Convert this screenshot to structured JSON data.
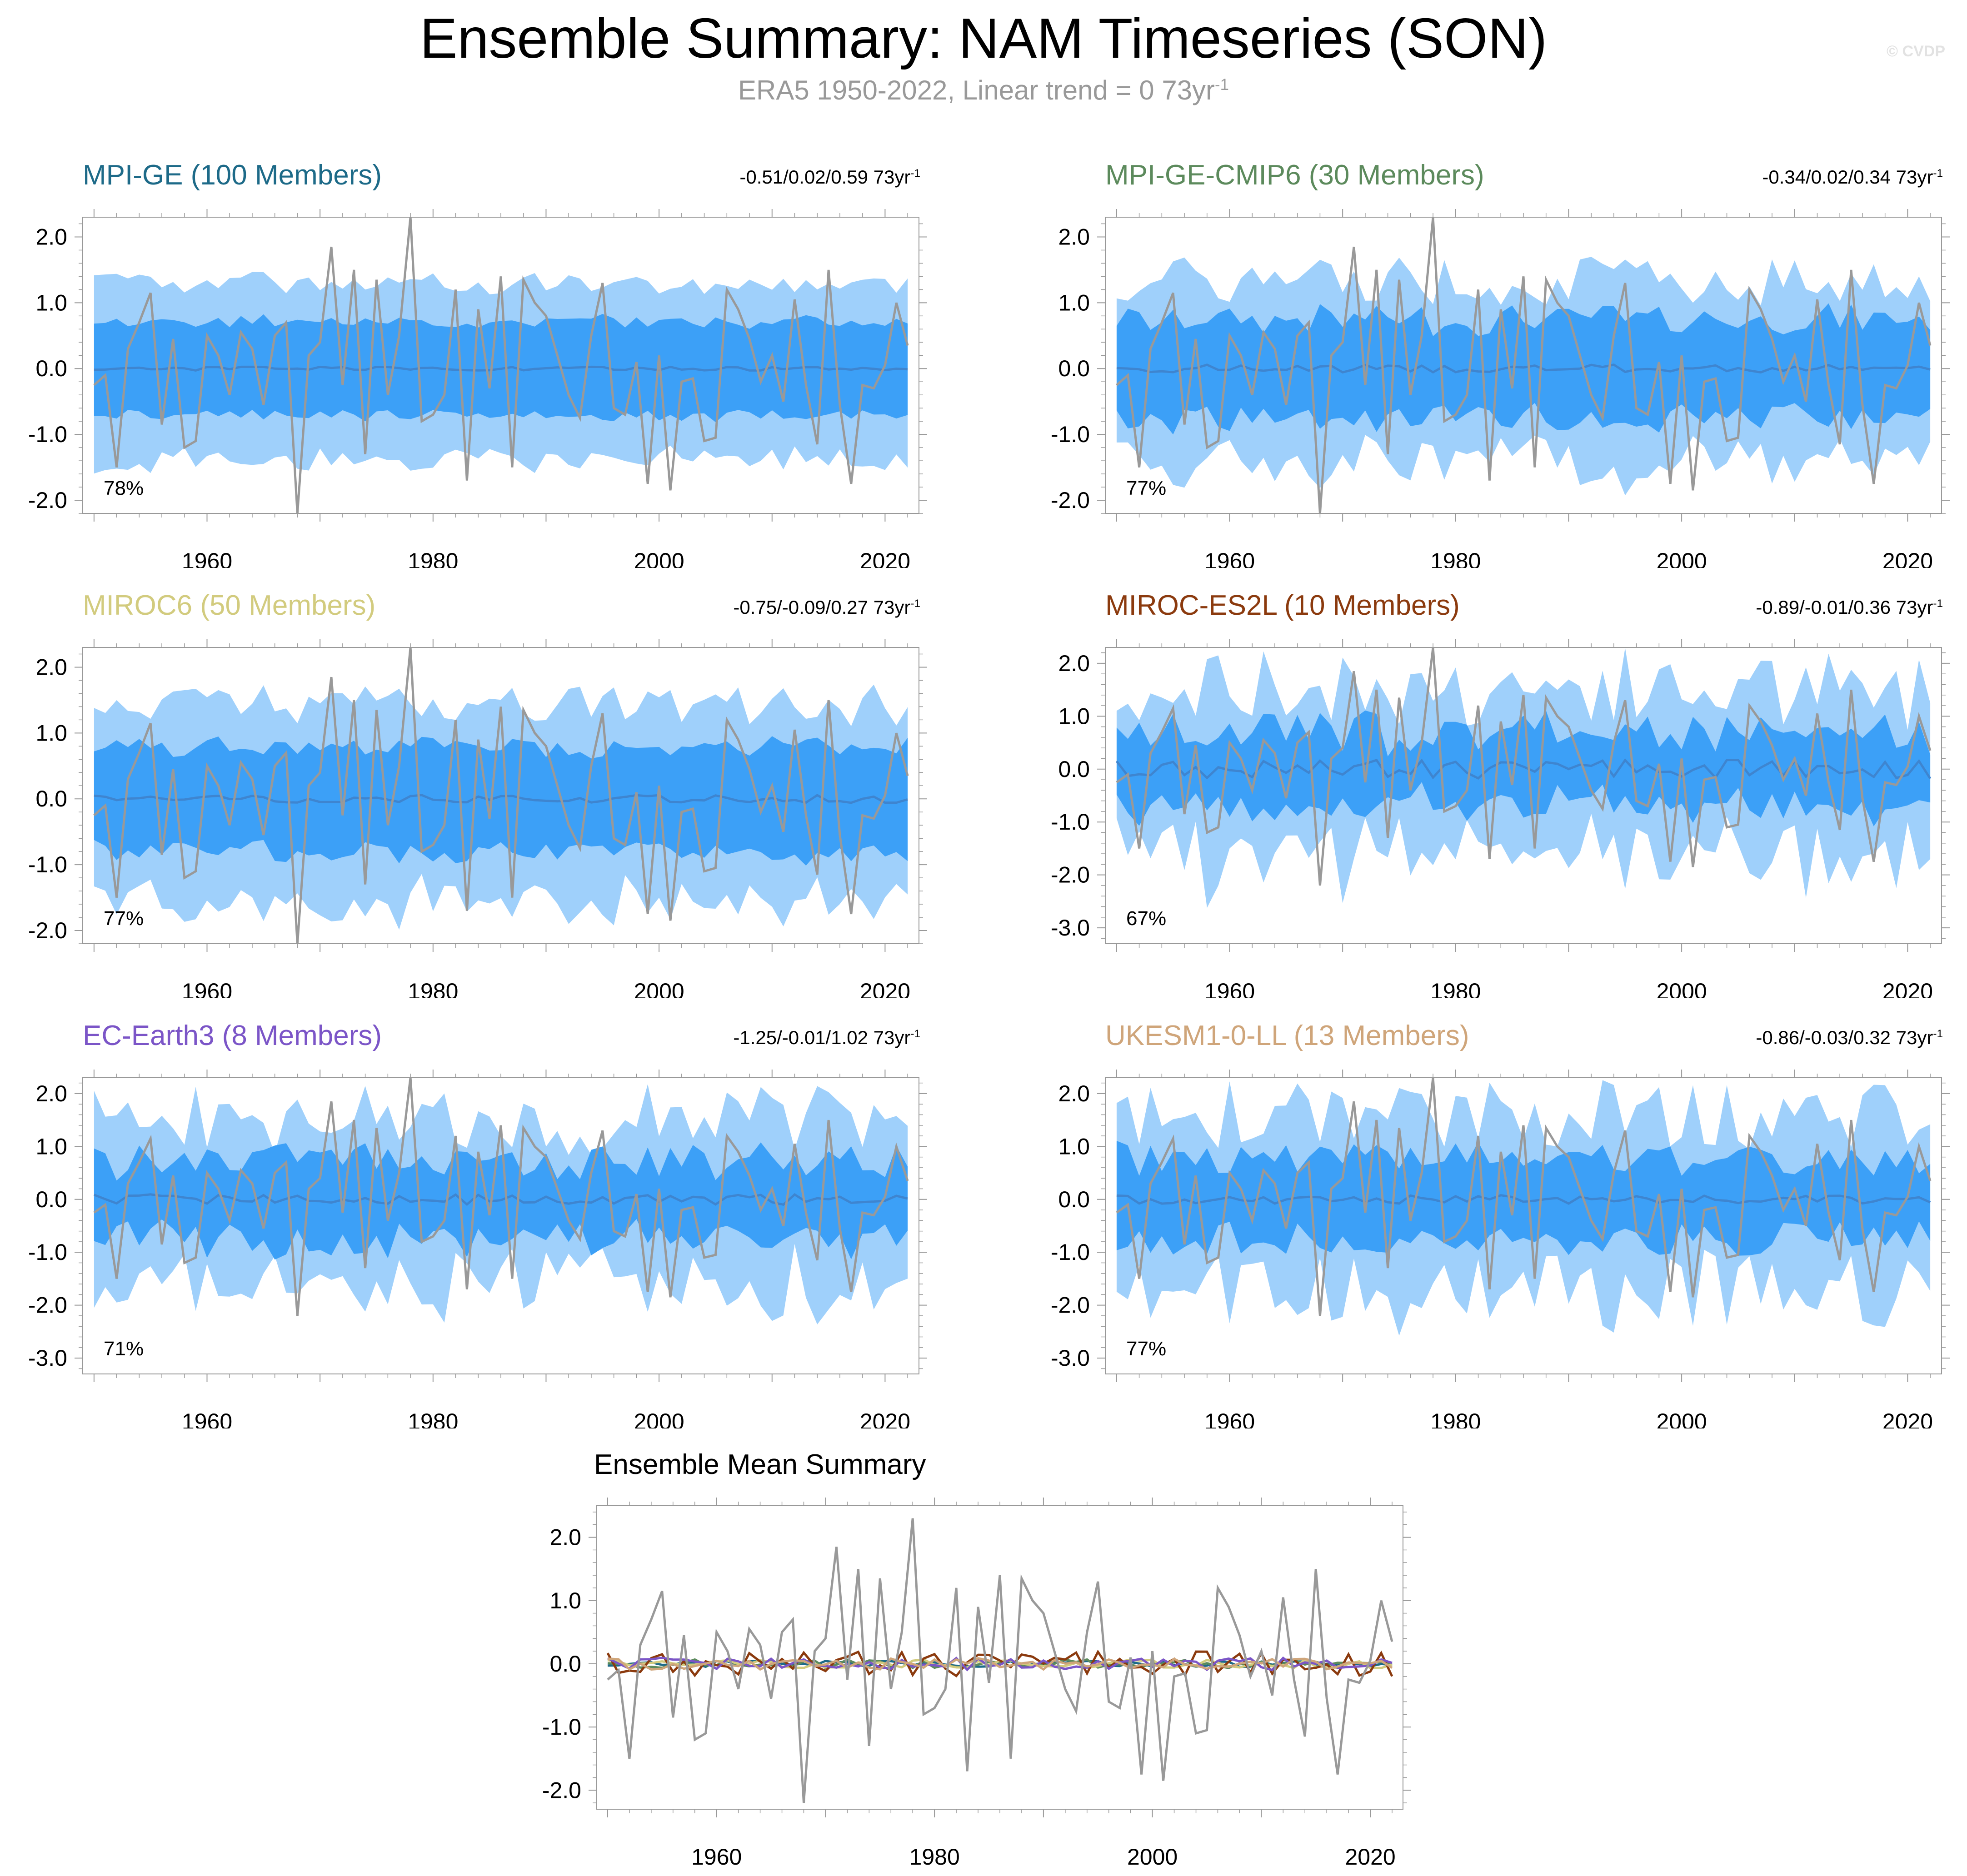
{
  "title": "Ensemble Summary: NAM Timeseries (SON)",
  "subtitle": "ERA5 1950-2022, Linear trend = 0 73yr",
  "subtitle_sup": "-1",
  "watermark": "© CVDP",
  "colors": {
    "band_outer": "#9fd0fb",
    "band_inner": "#3ca0f7",
    "ensemble_mean": "#3e85d0",
    "observations": "#999999",
    "axis": "#999999"
  },
  "chart_data": [
    {
      "type": "area",
      "title": "MPI-GE (100 Members)",
      "title_color": "#1d6a88",
      "trend_text": "-0.51/0.02/0.59 73yr",
      "trend_sup": "-1",
      "percent_label": "78%",
      "xlim": [
        1949,
        2023
      ],
      "ylim": [
        -2.2,
        2.3
      ],
      "yticks": [
        "2.0",
        "1.0",
        "0.0",
        "-1.0",
        "-2.0"
      ],
      "xticks": [
        "1960",
        "1980",
        "2000",
        "2020"
      ],
      "outer_width": 1.3,
      "inner_width": 0.72,
      "spread_var": 0.12,
      "mean_amp": 0.03,
      "seed": 3
    },
    {
      "type": "area",
      "title": "MPI-GE-CMIP6 (30 Members)",
      "title_color": "#5c8a5c",
      "trend_text": "-0.34/0.02/0.34 73yr",
      "trend_sup": "-1",
      "percent_label": "77%",
      "xlim": [
        1949,
        2023
      ],
      "ylim": [
        -2.2,
        2.3
      ],
      "yticks": [
        "2.0",
        "1.0",
        "0.0",
        "-1.0",
        "-2.0"
      ],
      "xticks": [
        "1960",
        "1980",
        "2000",
        "2020"
      ],
      "outer_width": 1.35,
      "inner_width": 0.75,
      "spread_var": 0.28,
      "mean_amp": 0.06,
      "seed": 7
    },
    {
      "type": "area",
      "title": "MIROC6 (50 Members)",
      "title_color": "#d2cb7e",
      "trend_text": "-0.75/-0.09/0.27 73yr",
      "trend_sup": "-1",
      "percent_label": "77%",
      "xlim": [
        1949,
        2023
      ],
      "ylim": [
        -2.2,
        2.3
      ],
      "yticks": [
        "2.0",
        "1.0",
        "0.0",
        "-1.0",
        "-2.0"
      ],
      "xticks": [
        "1960",
        "1980",
        "2000",
        "2020"
      ],
      "outer_width": 1.45,
      "inner_width": 0.8,
      "spread_var": 0.2,
      "mean_amp": 0.06,
      "seed": 11
    },
    {
      "type": "area",
      "title": "MIROC-ES2L (10 Members)",
      "title_color": "#8b3a0e",
      "trend_text": "-0.89/-0.01/0.36 73yr",
      "trend_sup": "-1",
      "percent_label": "67%",
      "xlim": [
        1949,
        2023
      ],
      "ylim": [
        -3.3,
        2.3
      ],
      "yticks": [
        "2.0",
        "1.0",
        "0.0",
        "-1.0",
        "-2.0",
        "-3.0"
      ],
      "xticks": [
        "1960",
        "1980",
        "2000",
        "2020"
      ],
      "outer_width": 1.55,
      "inner_width": 0.7,
      "spread_var": 0.45,
      "mean_amp": 0.18,
      "seed": 17
    },
    {
      "type": "area",
      "title": "EC-Earth3 (8 Members)",
      "title_color": "#7b55c7",
      "trend_text": "-1.25/-0.01/1.02 73yr",
      "trend_sup": "-1",
      "percent_label": "71%",
      "xlim": [
        1949,
        2023
      ],
      "ylim": [
        -3.3,
        2.3
      ],
      "yticks": [
        "2.0",
        "1.0",
        "0.0",
        "-1.0",
        "-2.0",
        "-3.0"
      ],
      "xticks": [
        "1960",
        "1980",
        "2000",
        "2020"
      ],
      "outer_width": 1.5,
      "inner_width": 0.75,
      "spread_var": 0.45,
      "mean_amp": 0.1,
      "seed": 23
    },
    {
      "type": "area",
      "title": "UKESM1-0-LL (13 Members)",
      "title_color": "#cfa57a",
      "trend_text": "-0.86/-0.03/0.32 73yr",
      "trend_sup": "-1",
      "percent_label": "77%",
      "xlim": [
        1949,
        2023
      ],
      "ylim": [
        -3.3,
        2.3
      ],
      "yticks": [
        "2.0",
        "1.0",
        "0.0",
        "-1.0",
        "-2.0",
        "-3.0"
      ],
      "xticks": [
        "1960",
        "1980",
        "2000",
        "2020"
      ],
      "outer_width": 1.6,
      "inner_width": 0.75,
      "spread_var": 0.4,
      "mean_amp": 0.08,
      "seed": 29
    },
    {
      "type": "line",
      "title": "Ensemble Mean Summary",
      "title_color": "#000000",
      "xlim": [
        1949,
        2023
      ],
      "ylim": [
        -2.3,
        2.5
      ],
      "yticks": [
        "2.0",
        "1.0",
        "0.0",
        "-1.0",
        "-2.0"
      ],
      "xticks": [
        "1960",
        "1980",
        "2000",
        "2020"
      ],
      "series_colors": [
        "#1d6a88",
        "#5c8a5c",
        "#d2cb7e",
        "#8b3a0e",
        "#7b55c7",
        "#cfa57a"
      ],
      "series_amps": [
        0.05,
        0.07,
        0.07,
        0.2,
        0.1,
        0.09
      ],
      "series_seeds": [
        3,
        7,
        11,
        17,
        23,
        29
      ]
    }
  ],
  "observations": {
    "years_start": 1950,
    "values": [
      -0.25,
      -0.1,
      -1.5,
      0.3,
      0.7,
      1.15,
      -0.85,
      0.45,
      -1.2,
      -1.1,
      0.5,
      0.2,
      -0.4,
      0.55,
      0.3,
      -0.55,
      0.5,
      0.7,
      -2.2,
      0.2,
      0.4,
      1.85,
      -0.25,
      1.5,
      -1.3,
      1.35,
      -0.4,
      0.5,
      2.3,
      -0.8,
      -0.7,
      -0.4,
      1.2,
      -1.7,
      0.9,
      -0.3,
      1.4,
      -1.5,
      1.35,
      1.0,
      0.8,
      0.2,
      -0.4,
      -0.75,
      0.5,
      1.3,
      -0.6,
      -0.7,
      0.1,
      -1.75,
      0.2,
      -1.85,
      -0.2,
      -0.15,
      -1.1,
      -1.05,
      1.2,
      0.9,
      0.45,
      -0.2,
      0.2,
      -0.5,
      1.05,
      -0.25,
      -1.15,
      1.5,
      -0.55,
      -1.75,
      -0.25,
      -0.3,
      0.05,
      1.0,
      0.35
    ]
  }
}
